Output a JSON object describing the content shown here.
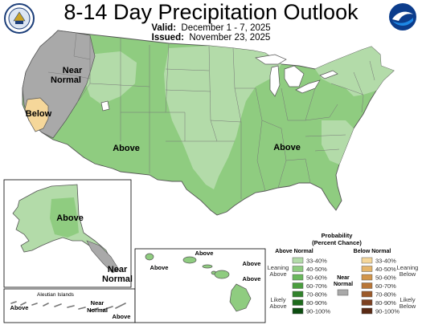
{
  "header": {
    "title": "8-14 Day Precipitation Outlook",
    "valid_label": "Valid:",
    "valid_value": "December 1 - 7, 2025",
    "issued_label": "Issued:",
    "issued_value": "November 23, 2025"
  },
  "logos": {
    "left": "doc-seal-icon",
    "right": "noaa-logo-icon"
  },
  "map_labels": {
    "near_normal_west_1": "Near",
    "near_normal_west_2": "Normal",
    "below_west": "Below",
    "above_west": "Above",
    "above_east": "Above",
    "alaska_above": "Above",
    "alaska_near_1": "Near",
    "alaska_near_2": "Normal",
    "aleutian_title": "Aleutian Islands",
    "aleutian_near_1": "Near",
    "aleutian_near_2": "Normal",
    "aleutian_above_1": "Above",
    "aleutian_above_2": "Above",
    "hawaii_above_1": "Above",
    "hawaii_above_2": "Above",
    "hawaii_above_3": "Above",
    "hawaii_above_4": "Above"
  },
  "legend": {
    "title_1": "Probability",
    "title_2": "(Percent Chance)",
    "above_header": "Above Normal",
    "below_header": "Below Normal",
    "near_label_1": "Near",
    "near_label_2": "Normal",
    "leaning_above_1": "Leaning",
    "leaning_above_2": "Above",
    "likely_above_1": "Likely",
    "likely_above_2": "Above",
    "leaning_below_1": "Leaning",
    "leaning_below_2": "Below",
    "likely_below_1": "Likely",
    "likely_below_2": "Below",
    "above_bins": [
      {
        "range": "33-40%",
        "color": "#b3dba9"
      },
      {
        "range": "40-50%",
        "color": "#8fcc80"
      },
      {
        "range": "50-60%",
        "color": "#6ab85c"
      },
      {
        "range": "60-70%",
        "color": "#4a9e3e"
      },
      {
        "range": "70-80%",
        "color": "#32832c"
      },
      {
        "range": "80-90%",
        "color": "#1d6a1c"
      },
      {
        "range": "90-100%",
        "color": "#0c4d10"
      }
    ],
    "below_bins": [
      {
        "range": "33-40%",
        "color": "#f5d79a"
      },
      {
        "range": "40-50%",
        "color": "#e5b56a"
      },
      {
        "range": "50-60%",
        "color": "#d2954a"
      },
      {
        "range": "60-70%",
        "color": "#b97637"
      },
      {
        "range": "70-80%",
        "color": "#9c5a2a"
      },
      {
        "range": "80-90%",
        "color": "#7c4020"
      },
      {
        "range": "90-100%",
        "color": "#5a2a14"
      }
    ],
    "near_color": "#a9a9a9"
  },
  "colors": {
    "above_light": "#b3dba9",
    "above_mid": "#8fcc80",
    "near_normal": "#a9a9a9",
    "below_light": "#f5d79a",
    "lakes": "#ffffff"
  }
}
